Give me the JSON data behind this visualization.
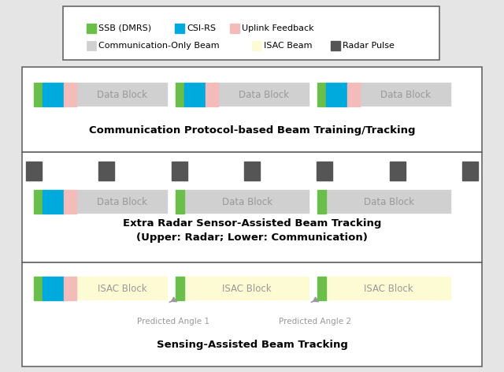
{
  "bg_color": "#e5e5e5",
  "legend_colors": {
    "SSB (DMRS)": "#6abf4b",
    "CSI-RS": "#00aadd",
    "Uplink Feedback": "#f4bbbb",
    "Communication-Only Beam": "#d0d0d0",
    "ISAC Beam": "#fdfbd4",
    "Radar Pulse": "#555555"
  },
  "row1_title": "Communication Protocol-based Beam Training/Tracking",
  "row2_title": "Extra Radar Sensor-Assisted Beam Tracking\n(Upper: Radar; Lower: Communication)",
  "row3_title": "Sensing-Assisted Beam Tracking",
  "comm_beam_color": "#d0d0d0",
  "isac_beam_color": "#fdfbd4",
  "ssb_color": "#6abf4b",
  "csi_color": "#00aadd",
  "ul_color": "#f4bbbb",
  "radar_color": "#555555",
  "data_block_text_color": "#999999",
  "isac_block_text_color": "#999999",
  "arrow_color": "#999999"
}
